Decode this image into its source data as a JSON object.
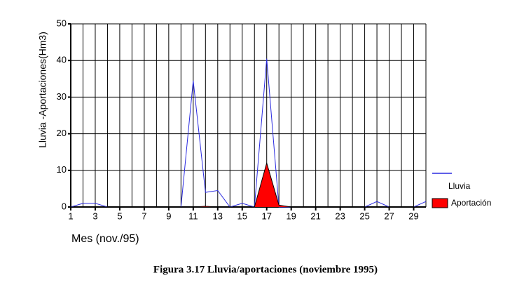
{
  "chart_data": {
    "type": "line",
    "ylabel": "Lluvia -Aportaciones(Hm3)",
    "xlabel": "Mes (nov./95)",
    "caption": "Figura 3.17 Lluvia/aportaciones (noviembre 1995)",
    "x": [
      1,
      2,
      3,
      4,
      5,
      6,
      7,
      8,
      9,
      10,
      11,
      12,
      13,
      14,
      15,
      16,
      17,
      18,
      19,
      20,
      21,
      22,
      23,
      24,
      25,
      26,
      27,
      28,
      29,
      30
    ],
    "series": [
      {
        "name": "Lluvia",
        "color": "#2a2ae0",
        "values": [
          0,
          1,
          1,
          0,
          0,
          0,
          0,
          0,
          0,
          0,
          34.5,
          4,
          4.5,
          0,
          1,
          0,
          40.5,
          0,
          0,
          0,
          0,
          0,
          0,
          0,
          0,
          1.5,
          0,
          0,
          0,
          1.5
        ]
      },
      {
        "name": "Aportación",
        "color": "#ff0000",
        "area": true,
        "values": [
          0,
          0,
          0,
          0,
          0,
          0,
          0,
          0,
          0,
          0,
          0,
          0.2,
          0,
          0,
          0,
          0,
          12,
          0.5,
          0,
          0,
          0,
          0,
          0,
          0,
          0,
          0,
          0,
          0,
          0,
          0
        ]
      }
    ],
    "xlim": [
      1,
      30
    ],
    "xticks": [
      1,
      3,
      5,
      7,
      9,
      11,
      13,
      15,
      17,
      19,
      21,
      23,
      25,
      27,
      29
    ],
    "ylim": [
      0,
      50
    ],
    "yticks": [
      0,
      10,
      20,
      30,
      40,
      50
    ],
    "grid": true
  }
}
